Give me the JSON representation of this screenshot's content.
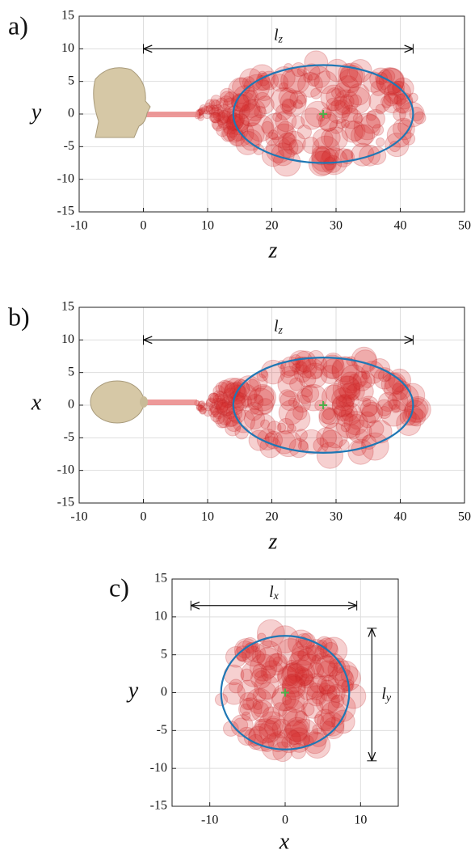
{
  "chart_data": [
    {
      "type": "ellipse",
      "panel_label": "a)",
      "xlabel": "z",
      "ylabel": "y",
      "xlim": [
        -10,
        50
      ],
      "ylim": [
        -15,
        15
      ],
      "xticks": [
        -10,
        0,
        10,
        20,
        30,
        40,
        50
      ],
      "yticks": [
        -15,
        -10,
        -5,
        0,
        5,
        10,
        15
      ],
      "grid": true,
      "ellipse": {
        "center": [
          28,
          0
        ],
        "radii": [
          14,
          7.5
        ],
        "color": "#1f77b4",
        "center_color": "#4daf4a"
      },
      "annotations": [
        {
          "text": "l",
          "sub": "z",
          "from": [
            0,
            10
          ],
          "to": [
            42,
            10
          ]
        }
      ]
    },
    {
      "type": "ellipse",
      "panel_label": "b)",
      "xlabel": "z",
      "ylabel": "x",
      "xlim": [
        -10,
        50
      ],
      "ylim": [
        -15,
        15
      ],
      "xticks": [
        -10,
        0,
        10,
        20,
        30,
        40,
        50
      ],
      "yticks": [
        -15,
        -10,
        -5,
        0,
        5,
        10,
        15
      ],
      "grid": true,
      "ellipse": {
        "center": [
          28,
          0
        ],
        "radii": [
          14,
          7.3
        ],
        "color": "#1f77b4",
        "center_color": "#4daf4a"
      },
      "annotations": [
        {
          "text": "l",
          "sub": "z",
          "from": [
            0,
            10
          ],
          "to": [
            42,
            10
          ]
        }
      ]
    },
    {
      "type": "ellipse",
      "panel_label": "c)",
      "xlabel": "x",
      "ylabel": "y",
      "xlim": [
        -15,
        15
      ],
      "ylim": [
        -15,
        15
      ],
      "xticks": [
        -10,
        0,
        10
      ],
      "yticks": [
        -15,
        -10,
        -5,
        0,
        5,
        10,
        15
      ],
      "grid": true,
      "ellipse": {
        "center": [
          0,
          0
        ],
        "radii": [
          8.5,
          7.5
        ],
        "color": "#1f77b4",
        "center_color": "#4daf4a"
      },
      "annotations": [
        {
          "text": "l",
          "sub": "x",
          "from": [
            -12.5,
            11.5
          ],
          "to": [
            9.5,
            11.5
          ]
        },
        {
          "text": "l",
          "sub": "y",
          "from": [
            11.5,
            8.5
          ],
          "to": [
            11.5,
            -9
          ]
        }
      ]
    }
  ]
}
